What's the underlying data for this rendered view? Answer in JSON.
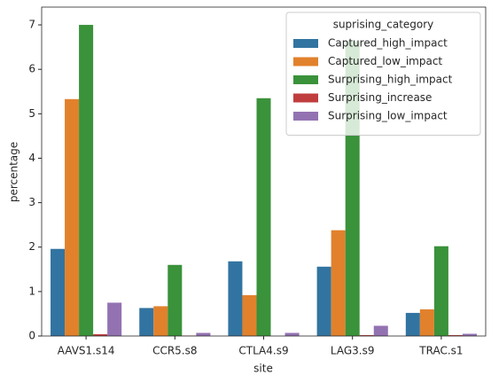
{
  "chart_data": {
    "type": "bar",
    "x_label": "site",
    "y_label": "percentage",
    "categories": [
      "AAVS1.s14",
      "CCR5.s8",
      "CTLA4.s9",
      "LAG3.s9",
      "TRAC.s1"
    ],
    "legend_title": "suprising_category",
    "legend_position": "upper right",
    "series": [
      {
        "name": "Captured_high_impact",
        "color": "#3274a1",
        "values": [
          1.96,
          0.63,
          1.68,
          1.56,
          0.52
        ]
      },
      {
        "name": "Captured_low_impact",
        "color": "#e1812c",
        "values": [
          5.33,
          0.67,
          0.92,
          2.38,
          0.6
        ]
      },
      {
        "name": "Surprising_high_impact",
        "color": "#3a923a",
        "values": [
          7.0,
          1.6,
          5.35,
          6.63,
          2.02
        ]
      },
      {
        "name": "Surprising_increase",
        "color": "#c03d3e",
        "values": [
          0.04,
          0.01,
          0.0,
          0.02,
          0.02
        ]
      },
      {
        "name": "Surprising_low_impact",
        "color": "#9372b2",
        "values": [
          0.75,
          0.07,
          0.07,
          0.23,
          0.05
        ]
      }
    ],
    "ylim": [
      0,
      7.4
    ],
    "yticks": [
      0,
      1,
      2,
      3,
      4,
      5,
      6,
      7
    ]
  }
}
